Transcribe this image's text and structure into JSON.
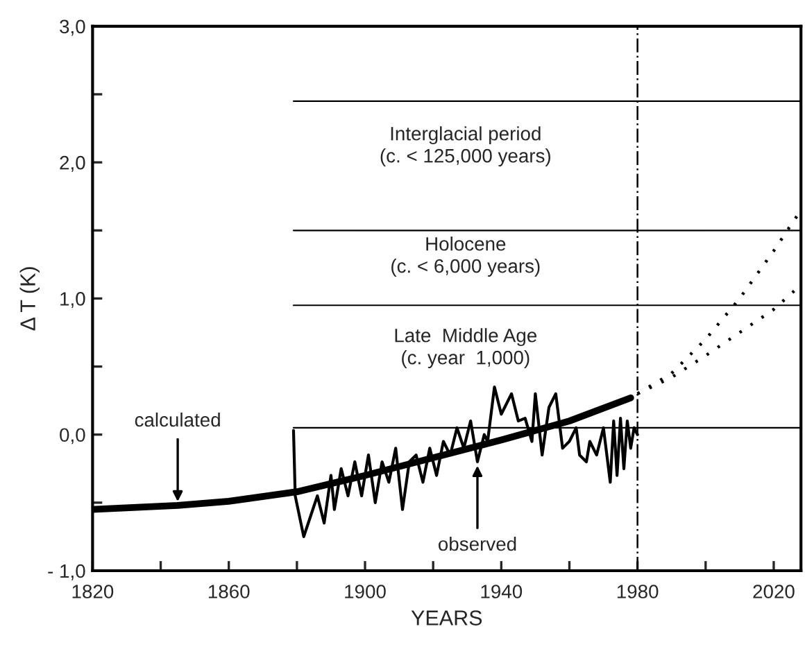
{
  "chart_data": {
    "type": "line",
    "xlabel": "YEARS",
    "ylabel": "Δ T (K)",
    "xlim": [
      1820,
      2028
    ],
    "ylim": [
      -1.0,
      3.0
    ],
    "xticks": [
      {
        "value": 1820,
        "label": "1820"
      },
      {
        "value": 1840,
        "label": null
      },
      {
        "value": 1860,
        "label": "1860"
      },
      {
        "value": 1880,
        "label": null
      },
      {
        "value": 1900,
        "label": "1900"
      },
      {
        "value": 1920,
        "label": null
      },
      {
        "value": 1940,
        "label": "1940"
      },
      {
        "value": 1960,
        "label": null
      },
      {
        "value": 1980,
        "label": "1980"
      },
      {
        "value": 2000,
        "label": null
      },
      {
        "value": 2020,
        "label": "2020"
      }
    ],
    "yticks": [
      {
        "value": -1.0,
        "label": "- 1,0"
      },
      {
        "value": -0.5,
        "label": null
      },
      {
        "value": 0.0,
        "label": "0,0"
      },
      {
        "value": 0.5,
        "label": null
      },
      {
        "value": 1.0,
        "label": "1,0"
      },
      {
        "value": 1.5,
        "label": null
      },
      {
        "value": 2.0,
        "label": "2,0"
      },
      {
        "value": 2.5,
        "label": null
      },
      {
        "value": 3.0,
        "label": "3,0"
      }
    ],
    "grid": false,
    "legend": false,
    "marker": "none",
    "series": [
      {
        "color": "#000000",
        "line_style": "solid",
        "x": [
          1820,
          1845,
          1860,
          1880,
          1900,
          1920,
          1940,
          1960,
          1978
        ],
        "values": [
          -0.55,
          -0.52,
          -0.49,
          -0.42,
          -0.3,
          -0.17,
          -0.04,
          0.1,
          0.27
        ]
      },
      {
        "color": "#000000",
        "line_style": "solid",
        "x": [
          1879,
          1879.5,
          1882,
          1884,
          1886,
          1888,
          1890,
          1891,
          1893,
          1895,
          1897,
          1899,
          1901,
          1903,
          1905,
          1907,
          1909,
          1911,
          1913,
          1915,
          1917,
          1919,
          1921,
          1923,
          1925,
          1927,
          1929,
          1931,
          1933,
          1935,
          1936,
          1938,
          1940,
          1941,
          1943,
          1945,
          1947,
          1949,
          1950,
          1952,
          1954,
          1956,
          1958,
          1960,
          1962,
          1963,
          1965,
          1966,
          1968,
          1970,
          1972,
          1973,
          1974,
          1975,
          1976,
          1977,
          1978,
          1979,
          1980
        ],
        "values": [
          0.03,
          -0.45,
          -0.75,
          -0.6,
          -0.45,
          -0.65,
          -0.3,
          -0.55,
          -0.25,
          -0.45,
          -0.2,
          -0.45,
          -0.15,
          -0.5,
          -0.2,
          -0.35,
          -0.1,
          -0.55,
          -0.2,
          -0.15,
          -0.35,
          -0.1,
          -0.3,
          -0.05,
          -0.15,
          0.05,
          -0.1,
          0.1,
          -0.2,
          0.0,
          -0.05,
          0.35,
          0.15,
          0.2,
          0.3,
          0.1,
          0.12,
          -0.05,
          0.3,
          -0.15,
          0.2,
          0.3,
          -0.1,
          -0.05,
          0.05,
          -0.15,
          -0.2,
          -0.05,
          -0.15,
          0.05,
          -0.35,
          0.1,
          -0.3,
          0.12,
          -0.25,
          0.1,
          -0.1,
          0.05,
          0.0
        ]
      },
      {
        "color": "#000000",
        "line_style": "dotted",
        "x": [
          1980,
          1990,
          2000,
          2010,
          2020,
          2028
        ],
        "values": [
          0.3,
          0.45,
          0.7,
          1.0,
          1.35,
          1.65
        ]
      },
      {
        "color": "#000000",
        "line_style": "dotted",
        "x": [
          1980,
          1990,
          2000,
          2010,
          2020,
          2028
        ],
        "values": [
          0.3,
          0.42,
          0.58,
          0.75,
          0.92,
          1.1
        ]
      }
    ],
    "ref_lines": [
      {
        "axis": "y",
        "value": 2.45
      },
      {
        "axis": "y",
        "value": 1.5
      },
      {
        "axis": "y",
        "value": 0.95
      },
      {
        "axis": "y",
        "value": 0.05
      },
      {
        "axis": "x",
        "value": 1980,
        "line_style": "dashed"
      }
    ],
    "annotations": [
      "Interglacial period\n(c. < 125,000 years)",
      "Holocene\n(c. < 6,000 years)",
      "Late  Middle Age\n(c. year  1,000)",
      {
        "text": "calculated",
        "x": 1845,
        "y": -0.52
      },
      {
        "text": "observed",
        "x": 1933,
        "y": -0.2
      }
    ]
  }
}
